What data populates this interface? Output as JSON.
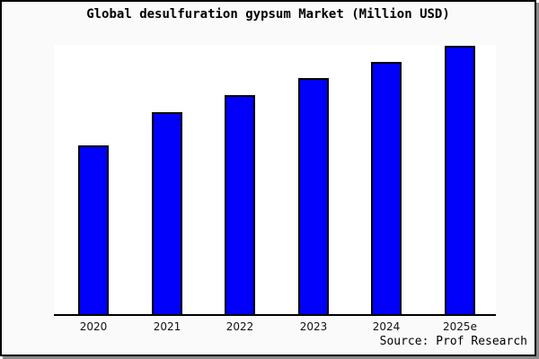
{
  "figure": {
    "title": "Global desulfuration gypsum Market (Million USD)",
    "source_note": "Source: Prof Research"
  },
  "colors": {
    "bar_fill": "#0000fb",
    "bar_border": "#000000",
    "plot_background": "#ffffff",
    "figure_background": "#fafafa",
    "frame_border": "#000000",
    "frame_shadow": "#8a8a8a",
    "axis_line": "#000000",
    "text": "#000000"
  },
  "chart_data": {
    "type": "bar",
    "title": "Global desulfuration gypsum Market (Million USD)",
    "categories": [
      "2020",
      "2021",
      "2022",
      "2023",
      "2024",
      "2025e"
    ],
    "values": [
      188,
      225,
      244,
      263,
      281,
      299
    ],
    "values_note": "No y-axis, gridlines or data labels are shown in the figure; values are estimated relative magnitudes read from bar heights (baseline = 0).",
    "xlabel": "",
    "ylabel": "",
    "y_axis_visible": false,
    "gridlines": false,
    "legend": false,
    "bar_color": "#0000fb",
    "bar_border_color": "#000000",
    "source": "Source: Prof Research"
  }
}
